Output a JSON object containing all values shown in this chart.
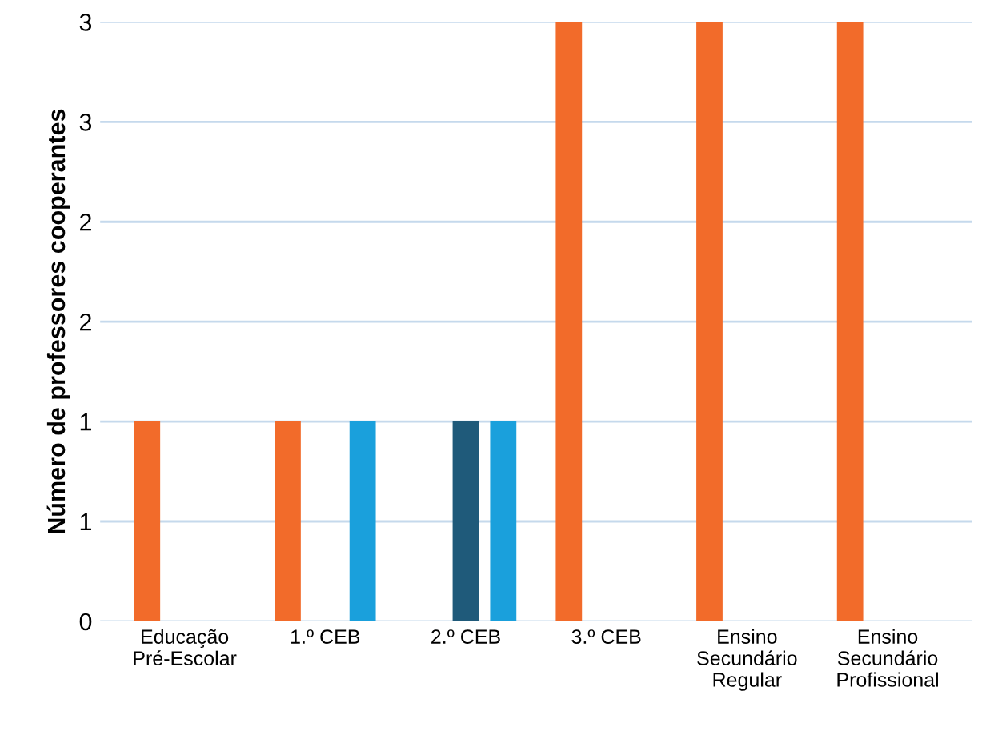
{
  "chart_data": {
    "type": "bar",
    "ylabel": "Número de professores cooperantes",
    "categories": [
      "Educação\nPré-Escolar",
      "1.º CEB",
      "2.º CEB",
      "3.º CEB",
      "Ensino\nSecundário\nRegular",
      "Ensino\nSecundário\nProfissional"
    ],
    "series": [
      {
        "color": "#f26b2a",
        "values": [
          1,
          1,
          null,
          3,
          3,
          3
        ]
      },
      {
        "color": "#1f5a7a",
        "values": [
          null,
          null,
          1,
          null,
          null,
          null
        ]
      },
      {
        "color": "#1aa0dc",
        "values": [
          null,
          1,
          1,
          null,
          null,
          null
        ]
      }
    ],
    "ylim": [
      0,
      3
    ],
    "yticks": [
      0,
      {
        "value": 0.5,
        "label": "1"
      },
      1,
      {
        "value": 1.5,
        "label": "2"
      },
      2,
      {
        "value": 2.5,
        "label": "3"
      },
      3
    ],
    "grid": "y"
  }
}
